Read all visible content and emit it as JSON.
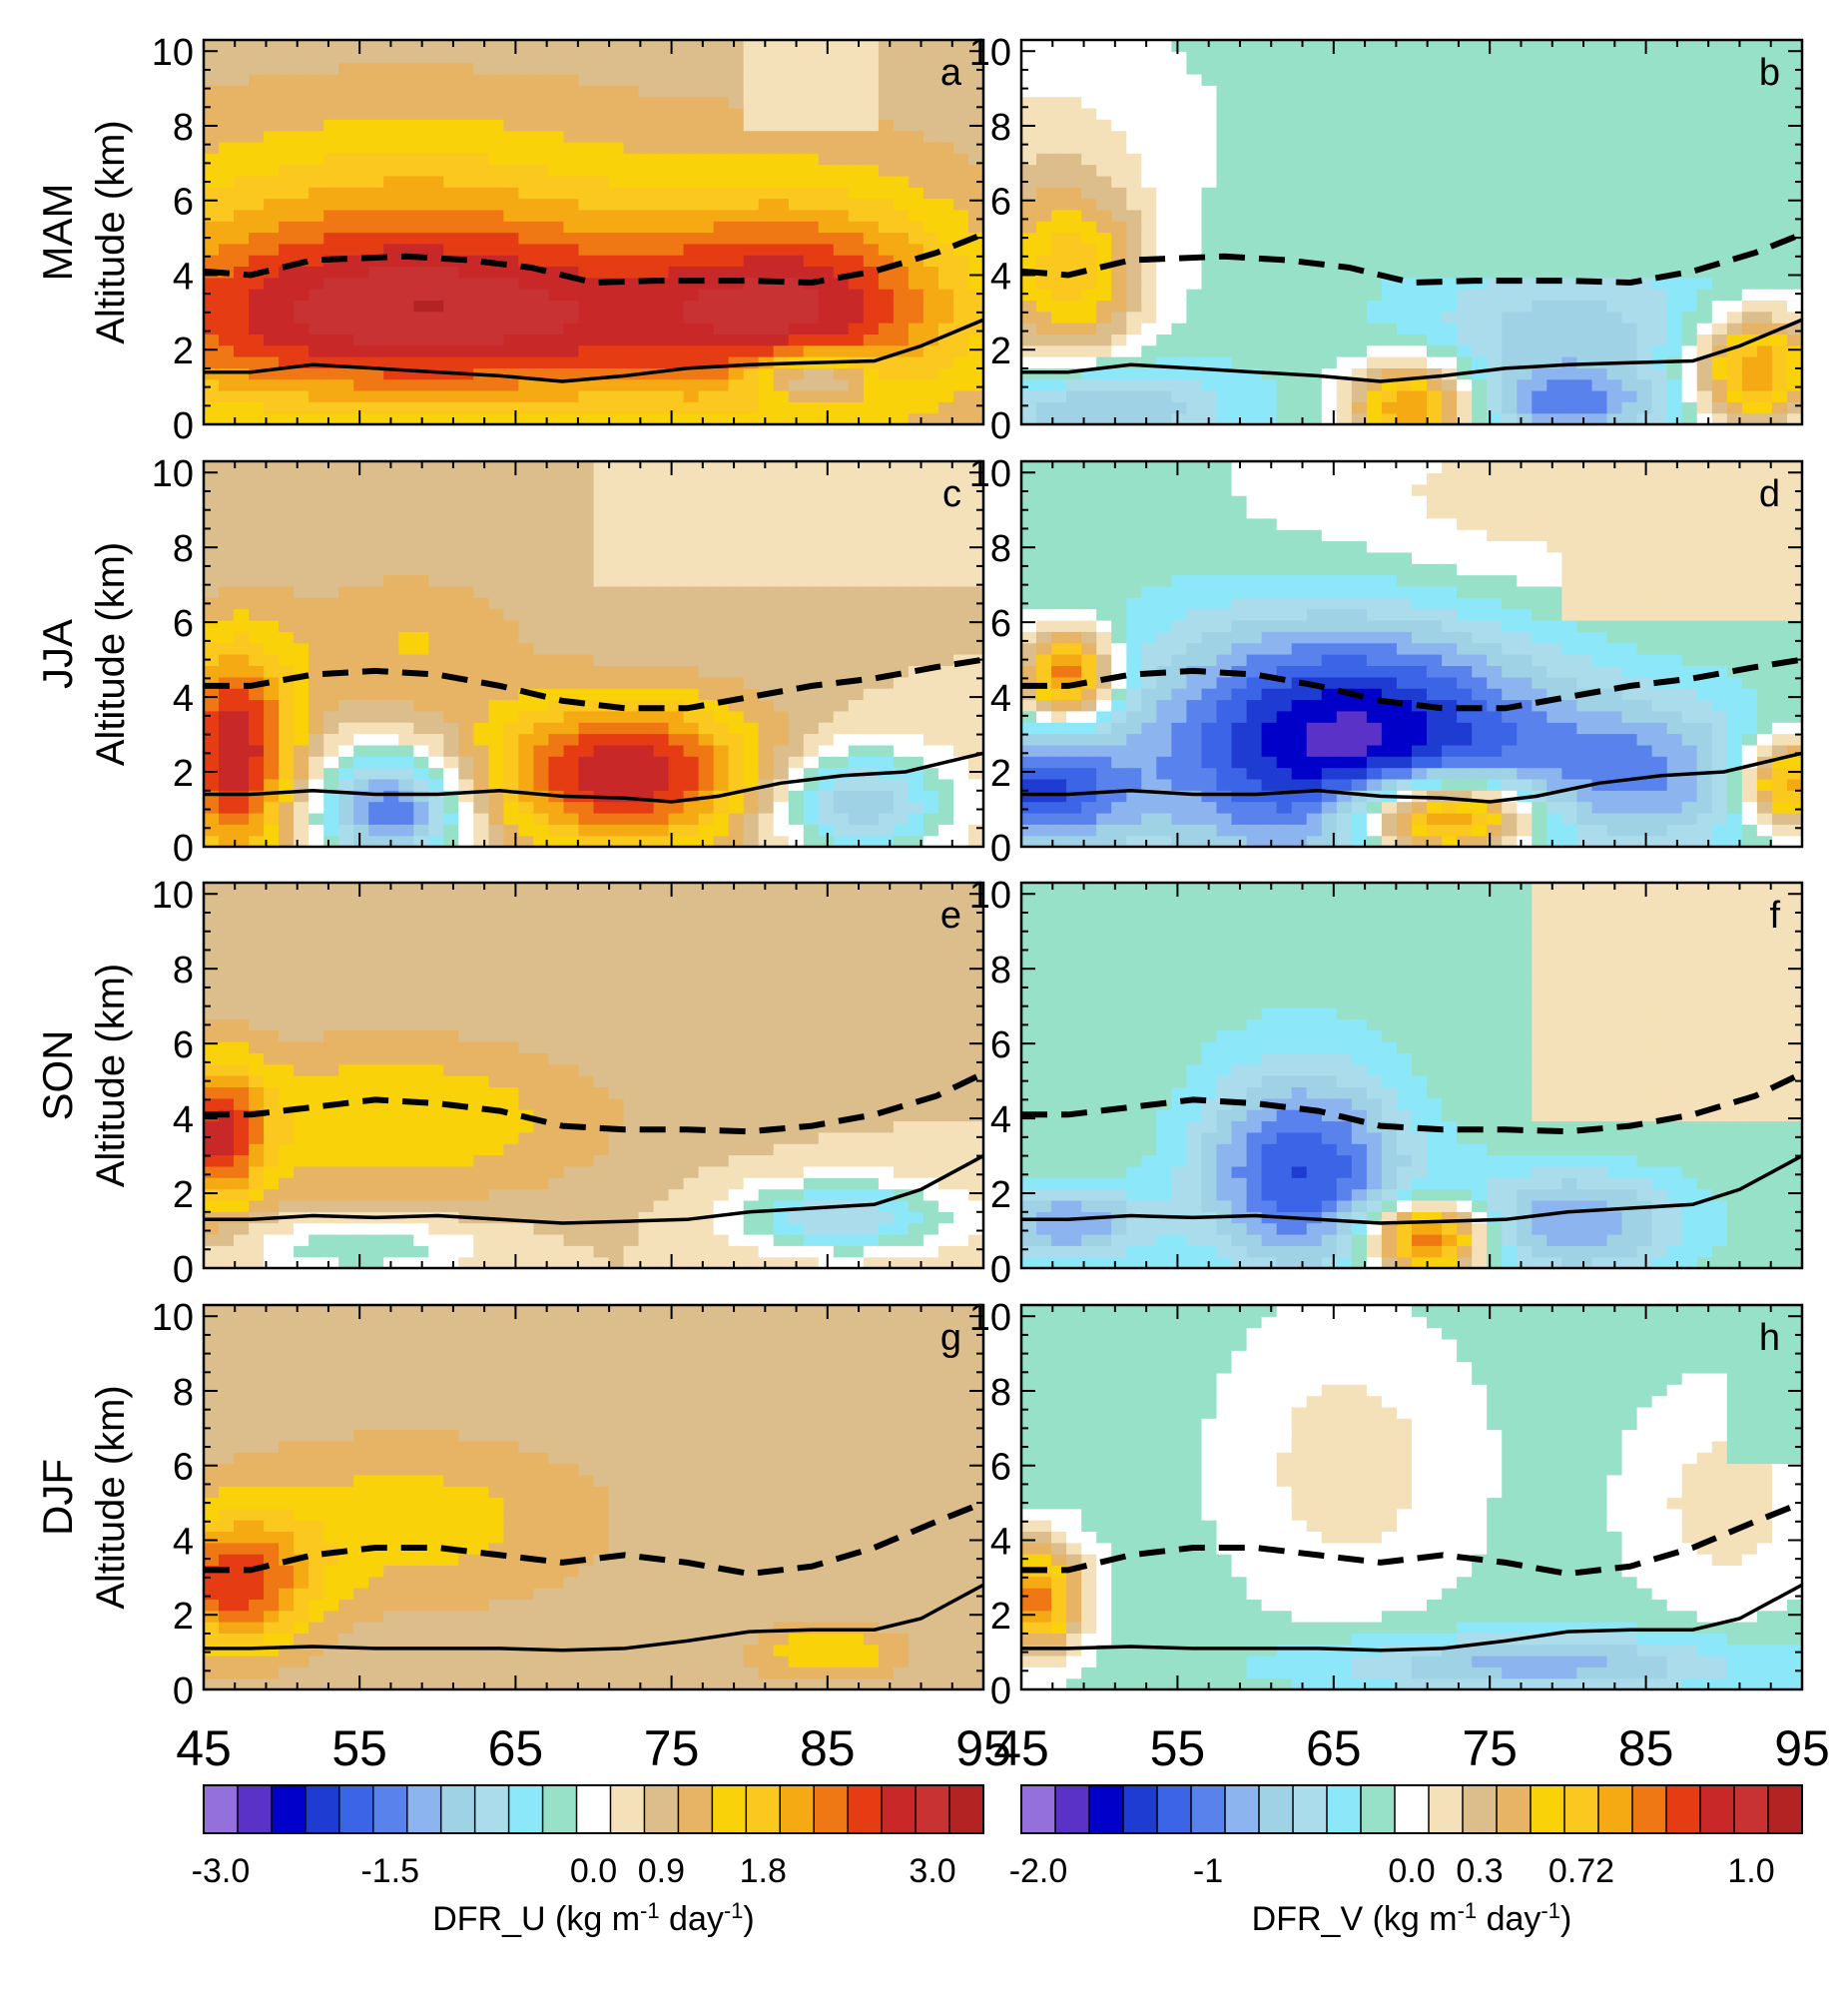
{
  "chart_data": {
    "type": "heatmap",
    "x_ticks": [
      "45",
      "55",
      "65",
      "75",
      "85",
      "95"
    ],
    "xlim": [
      45,
      95
    ],
    "y_ticks": [
      "0",
      "2",
      "4",
      "6",
      "8",
      "10"
    ],
    "ylim": [
      0,
      10.3
    ],
    "ylabel": "Altitude (km)",
    "rows": [
      {
        "season": "MAM",
        "panels": [
          {
            "letter": "a",
            "var": "U"
          },
          {
            "letter": "b",
            "var": "V"
          }
        ]
      },
      {
        "season": "JJA",
        "panels": [
          {
            "letter": "c",
            "var": "U"
          },
          {
            "letter": "d",
            "var": "V"
          }
        ]
      },
      {
        "season": "SON",
        "panels": [
          {
            "letter": "e",
            "var": "U"
          },
          {
            "letter": "f",
            "var": "V"
          }
        ]
      },
      {
        "season": "DJF",
        "panels": [
          {
            "letter": "g",
            "var": "U"
          },
          {
            "letter": "h",
            "var": "V"
          }
        ]
      }
    ],
    "colors": [
      "#9370DB",
      "#5a32c8",
      "#0000c8",
      "#1e3cd2",
      "#3c64e6",
      "#5a82ec",
      "#8cb4ee",
      "#a0d2e6",
      "#aadcec",
      "#8ce8f8",
      "#96e1c8",
      "#ffffff",
      "#f5e1b9",
      "#dcbe8c",
      "#e6b464",
      "#fad20a",
      "#fac81e",
      "#f5aa14",
      "#f07814",
      "#e63c14",
      "#c82828",
      "#c83232",
      "#b42323"
    ],
    "colorbars": [
      {
        "var": "U",
        "label_main": "DFR_U (kg m",
        "exp1": "-1",
        "label_mid": " day",
        "exp2": "-1",
        "label_end": ")",
        "tick_labels": [
          {
            "text": "-3.0",
            "index": 0.5
          },
          {
            "text": "-1.5",
            "index": 5.5
          },
          {
            "text": "0.0",
            "index": 11.5
          },
          {
            "text": "0.9",
            "index": 13.5
          },
          {
            "text": "1.8",
            "index": 16.5
          },
          {
            "text": "3.0",
            "index": 21.5
          }
        ]
      },
      {
        "var": "V",
        "label_main": "DFR_V (kg m",
        "exp1": "-1",
        "label_mid": " day",
        "exp2": "-1",
        "label_end": ")",
        "tick_labels": [
          {
            "text": "-2.0",
            "index": 0.5
          },
          {
            "text": "-1",
            "index": 5.5
          },
          {
            "text": "0.0",
            "index": 11.5
          },
          {
            "text": "0.3",
            "index": 13.5
          },
          {
            "text": "0.72",
            "index": 16.5
          },
          {
            "text": "1.0",
            "index": 21.5
          }
        ]
      }
    ],
    "lines": {
      "MAM": {
        "dashed": [
          [
            45,
            4.1
          ],
          [
            48,
            4.0
          ],
          [
            52,
            4.4
          ],
          [
            58,
            4.5
          ],
          [
            62,
            4.4
          ],
          [
            66,
            4.2
          ],
          [
            70,
            3.8
          ],
          [
            74,
            3.85
          ],
          [
            80,
            3.85
          ],
          [
            84,
            3.8
          ],
          [
            88,
            4.1
          ],
          [
            92,
            4.6
          ],
          [
            95,
            5.1
          ]
        ],
        "solid": [
          [
            45,
            1.4
          ],
          [
            48,
            1.4
          ],
          [
            52,
            1.6
          ],
          [
            56,
            1.5
          ],
          [
            60,
            1.4
          ],
          [
            64,
            1.3
          ],
          [
            68,
            1.15
          ],
          [
            72,
            1.3
          ],
          [
            76,
            1.5
          ],
          [
            80,
            1.6
          ],
          [
            84,
            1.65
          ],
          [
            88,
            1.7
          ],
          [
            91,
            2.1
          ],
          [
            95,
            2.8
          ]
        ]
      },
      "JJA": {
        "dashed": [
          [
            45,
            4.3
          ],
          [
            48,
            4.3
          ],
          [
            52,
            4.6
          ],
          [
            56,
            4.7
          ],
          [
            60,
            4.6
          ],
          [
            64,
            4.3
          ],
          [
            68,
            3.9
          ],
          [
            72,
            3.7
          ],
          [
            76,
            3.7
          ],
          [
            80,
            4.0
          ],
          [
            84,
            4.3
          ],
          [
            88,
            4.5
          ],
          [
            92,
            4.8
          ],
          [
            95,
            5.0
          ]
        ],
        "solid": [
          [
            45,
            1.4
          ],
          [
            48,
            1.4
          ],
          [
            52,
            1.5
          ],
          [
            56,
            1.4
          ],
          [
            60,
            1.4
          ],
          [
            64,
            1.5
          ],
          [
            68,
            1.35
          ],
          [
            72,
            1.3
          ],
          [
            75,
            1.2
          ],
          [
            78,
            1.35
          ],
          [
            82,
            1.7
          ],
          [
            86,
            1.9
          ],
          [
            90,
            2.0
          ],
          [
            95,
            2.5
          ]
        ]
      },
      "SON": {
        "dashed": [
          [
            45,
            4.1
          ],
          [
            48,
            4.1
          ],
          [
            52,
            4.3
          ],
          [
            56,
            4.5
          ],
          [
            60,
            4.4
          ],
          [
            64,
            4.2
          ],
          [
            68,
            3.8
          ],
          [
            72,
            3.7
          ],
          [
            76,
            3.7
          ],
          [
            80,
            3.65
          ],
          [
            84,
            3.8
          ],
          [
            88,
            4.1
          ],
          [
            92,
            4.6
          ],
          [
            95,
            5.2
          ]
        ],
        "solid": [
          [
            45,
            1.3
          ],
          [
            48,
            1.3
          ],
          [
            52,
            1.4
          ],
          [
            56,
            1.35
          ],
          [
            60,
            1.4
          ],
          [
            64,
            1.3
          ],
          [
            68,
            1.2
          ],
          [
            72,
            1.25
          ],
          [
            76,
            1.3
          ],
          [
            80,
            1.5
          ],
          [
            84,
            1.6
          ],
          [
            88,
            1.7
          ],
          [
            91,
            2.1
          ],
          [
            95,
            3.0
          ]
        ]
      },
      "DJF": {
        "dashed": [
          [
            45,
            3.2
          ],
          [
            48,
            3.2
          ],
          [
            52,
            3.6
          ],
          [
            56,
            3.8
          ],
          [
            60,
            3.8
          ],
          [
            64,
            3.6
          ],
          [
            68,
            3.4
          ],
          [
            72,
            3.6
          ],
          [
            76,
            3.4
          ],
          [
            80,
            3.1
          ],
          [
            84,
            3.3
          ],
          [
            88,
            3.8
          ],
          [
            92,
            4.5
          ],
          [
            95,
            5.0
          ]
        ],
        "solid": [
          [
            45,
            1.1
          ],
          [
            48,
            1.1
          ],
          [
            52,
            1.15
          ],
          [
            56,
            1.1
          ],
          [
            60,
            1.1
          ],
          [
            64,
            1.1
          ],
          [
            68,
            1.05
          ],
          [
            72,
            1.1
          ],
          [
            76,
            1.3
          ],
          [
            80,
            1.55
          ],
          [
            84,
            1.6
          ],
          [
            88,
            1.6
          ],
          [
            91,
            1.9
          ],
          [
            95,
            2.8
          ]
        ]
      }
    },
    "fields_note": "Approximate colour-filled field reconstructed on a coarse grid (levels index the colour scale)."
  }
}
